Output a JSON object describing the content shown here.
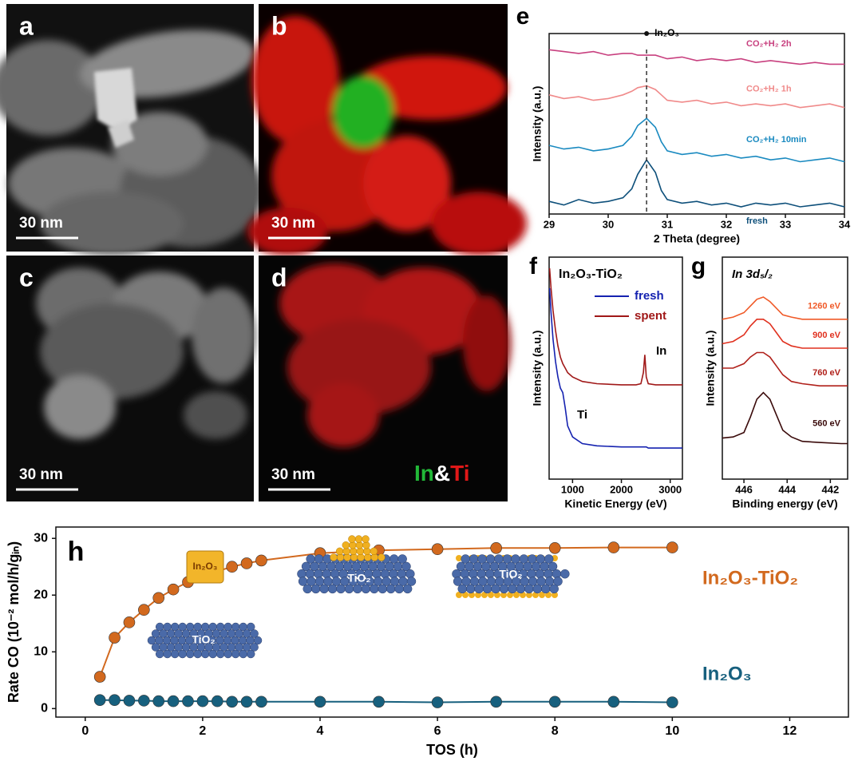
{
  "image_panels": [
    {
      "label": "a",
      "scale_bar": "30 nm"
    },
    {
      "label": "b",
      "scale_bar": "30 nm"
    },
    {
      "label": "c",
      "scale_bar": "30 nm"
    },
    {
      "label": "d",
      "scale_bar": "30 nm",
      "legend": [
        "In",
        "&",
        "Ti"
      ]
    }
  ],
  "chart_data": [
    {
      "type": "line",
      "panel": "e",
      "xlabel": "2 Theta (degree)",
      "ylabel": "Intensity (a.u.)",
      "annotation": "In₂O₃",
      "reference_x": 30.65,
      "x": [
        29,
        29.25,
        29.5,
        29.75,
        30,
        30.25,
        30.4,
        30.5,
        30.65,
        30.8,
        30.9,
        31,
        31.25,
        31.5,
        31.75,
        32,
        32.25,
        32.5,
        32.75,
        33,
        33.25,
        33.5,
        33.75,
        34
      ],
      "xlim": [
        29,
        34
      ],
      "xticks": [
        29,
        30,
        31,
        32,
        33,
        34
      ],
      "ylim": [
        0,
        10
      ],
      "series": [
        {
          "name": "CO₂+H₂ 2h",
          "color": "#c8407f",
          "values": [
            9.1,
            9.0,
            8.9,
            9.0,
            8.8,
            8.9,
            8.9,
            8.8,
            8.8,
            8.8,
            8.7,
            8.6,
            8.7,
            8.5,
            8.6,
            8.5,
            8.6,
            8.4,
            8.5,
            8.4,
            8.3,
            8.4,
            8.3,
            8.3
          ]
        },
        {
          "name": "CO₂+H₂ 1h",
          "color": "#f08a8a",
          "values": [
            6.6,
            6.4,
            6.5,
            6.3,
            6.4,
            6.6,
            6.8,
            7.0,
            7.1,
            6.9,
            6.6,
            6.3,
            6.2,
            6.3,
            6.1,
            6.2,
            6.0,
            6.1,
            6.0,
            6.1,
            5.9,
            6.0,
            6.1,
            5.9
          ]
        },
        {
          "name": "CO₂+H₂ 10min",
          "color": "#1a8ac0",
          "values": [
            3.8,
            3.6,
            3.7,
            3.5,
            3.6,
            3.8,
            4.3,
            4.9,
            5.3,
            4.8,
            4.0,
            3.5,
            3.3,
            3.4,
            3.2,
            3.3,
            3.1,
            3.2,
            3.0,
            3.1,
            2.9,
            3.0,
            3.1,
            2.9
          ]
        },
        {
          "name": "fresh",
          "color": "#0d4f7a",
          "values": [
            0.7,
            0.5,
            0.8,
            0.6,
            0.7,
            0.9,
            1.4,
            2.2,
            3.0,
            2.3,
            1.3,
            0.8,
            0.6,
            0.7,
            0.5,
            0.6,
            0.4,
            0.6,
            0.5,
            0.6,
            0.4,
            0.5,
            0.6,
            0.4
          ]
        }
      ]
    },
    {
      "type": "line",
      "panel": "f",
      "title": "In₂O₃-TiO₂",
      "xlabel": "Kinetic Energy (eV)",
      "ylabel": "Intensity (a.u.)",
      "annotations": [
        "In",
        "Ti"
      ],
      "x": [
        530,
        560,
        600,
        650,
        700,
        750,
        800,
        850,
        900,
        1000,
        1200,
        1500,
        2000,
        2300,
        2400,
        2450,
        2480,
        2510,
        2550,
        2700,
        3000,
        3250
      ],
      "xlim": [
        520,
        3250
      ],
      "xticks": [
        1000,
        2000,
        3000
      ],
      "ylim": [
        0,
        10
      ],
      "series": [
        {
          "name": "fresh",
          "color": "#1522b0",
          "values": [
            8.6,
            7.5,
            6.3,
            5.3,
            4.6,
            4.1,
            3.9,
            3.2,
            2.4,
            1.9,
            1.6,
            1.5,
            1.45,
            1.45,
            1.45,
            1.45,
            1.45,
            1.45,
            1.4,
            1.4,
            1.4,
            1.4
          ]
        },
        {
          "name": "spent",
          "color": "#a01818",
          "values": [
            9.5,
            8.6,
            7.6,
            6.7,
            6.0,
            5.5,
            5.2,
            5.0,
            4.8,
            4.6,
            4.4,
            4.3,
            4.25,
            4.25,
            4.3,
            4.8,
            5.6,
            4.6,
            4.3,
            4.25,
            4.25,
            4.25
          ]
        }
      ]
    },
    {
      "type": "line",
      "panel": "g",
      "title": "In 3d₅/₂",
      "xlabel": "Binding energy (eV)",
      "ylabel": "Intensity (a.u.)",
      "x": [
        447,
        446.5,
        446,
        445.7,
        445.4,
        445.1,
        444.8,
        444.5,
        444.2,
        443.8,
        443.3,
        442.5,
        441.5,
        441.2
      ],
      "xlim": [
        447,
        441.2
      ],
      "xticks": [
        446,
        444,
        442
      ],
      "ylim": [
        0,
        10
      ],
      "series": [
        {
          "name": "1260 eV",
          "color": "#f05a28",
          "values": [
            7.2,
            7.3,
            7.5,
            7.8,
            8.1,
            8.2,
            8.0,
            7.7,
            7.4,
            7.3,
            7.2,
            7.2,
            7.2,
            7.2
          ]
        },
        {
          "name": "900 eV",
          "color": "#e0301e",
          "values": [
            6.1,
            6.2,
            6.5,
            6.9,
            7.2,
            7.2,
            7.0,
            6.6,
            6.2,
            6.0,
            5.9,
            5.9,
            5.9,
            5.9
          ]
        },
        {
          "name": "760 eV",
          "color": "#b0201a",
          "values": [
            5.0,
            5.0,
            5.2,
            5.5,
            5.7,
            5.7,
            5.5,
            5.1,
            4.7,
            4.4,
            4.3,
            4.2,
            4.2,
            4.2
          ]
        },
        {
          "name": "560 eV",
          "color": "#3a0a0a",
          "values": [
            1.85,
            1.9,
            2.1,
            2.8,
            3.6,
            3.9,
            3.6,
            2.9,
            2.2,
            1.9,
            1.7,
            1.65,
            1.6,
            1.6
          ]
        }
      ]
    },
    {
      "type": "line",
      "panel": "h",
      "xlabel": "TOS (h)",
      "ylabel": "Rate CO (10⁻² mol/h/gᵢₙ)",
      "markers": true,
      "annotations": [
        "In₂O₃",
        "TiO₂",
        "TiO₂",
        "TiO₂"
      ],
      "x": [
        0.25,
        0.5,
        0.75,
        1,
        1.25,
        1.5,
        1.75,
        2,
        2.25,
        2.5,
        2.75,
        3,
        4,
        5,
        6,
        7,
        8,
        9,
        10
      ],
      "xlim": [
        -0.5,
        13
      ],
      "xticks": [
        0,
        2,
        4,
        6,
        8,
        10,
        12
      ],
      "ylim": [
        -1.5,
        32
      ],
      "yticks": [
        0,
        10,
        20,
        30
      ],
      "series": [
        {
          "name": "In₂O₃-TiO₂",
          "color": "#d2691e",
          "values": [
            5.6,
            12.5,
            15.2,
            17.4,
            19.5,
            21,
            22.3,
            23.4,
            24.2,
            25,
            25.6,
            26.1,
            27.4,
            27.9,
            28.1,
            28.3,
            28.3,
            28.4,
            28.4
          ]
        },
        {
          "name": "In₂O₃",
          "color": "#17607e",
          "values": [
            1.5,
            1.5,
            1.4,
            1.4,
            1.3,
            1.3,
            1.3,
            1.3,
            1.3,
            1.2,
            1.2,
            1.2,
            1.2,
            1.2,
            1.1,
            1.2,
            1.2,
            1.2,
            1.1
          ]
        }
      ]
    }
  ]
}
